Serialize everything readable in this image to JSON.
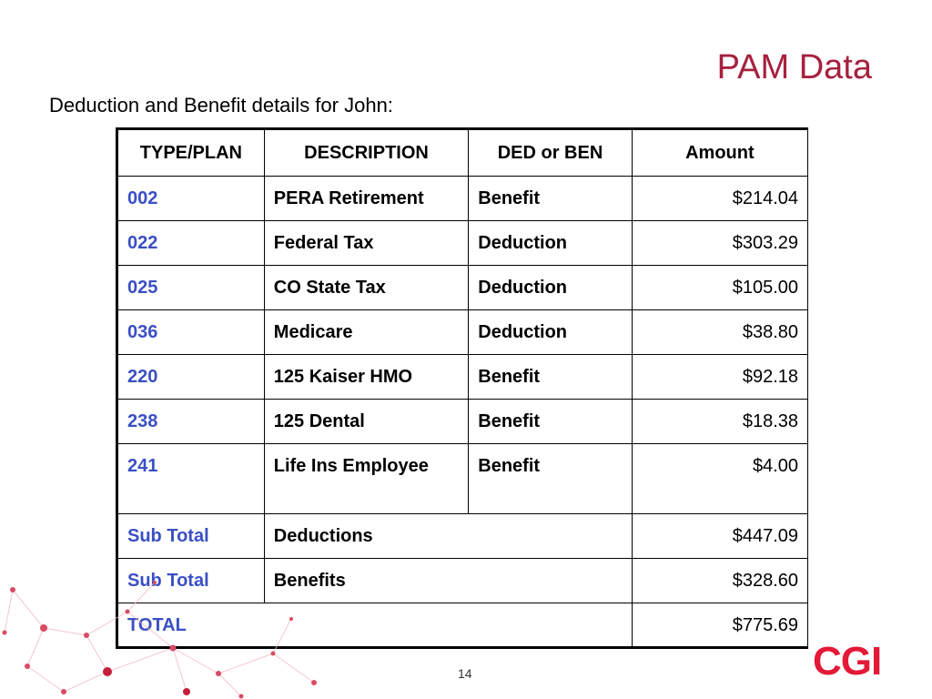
{
  "title": "PAM Data",
  "subtitle": "Deduction and Benefit details for John:",
  "table": {
    "headers": [
      "TYPE/PLAN",
      "DESCRIPTION",
      "DED or BEN",
      "Amount"
    ],
    "rows": [
      {
        "code": "002",
        "description": "PERA Retirement",
        "type": "Benefit",
        "amount": "$214.04"
      },
      {
        "code": "022",
        "description": "Federal Tax",
        "type": "Deduction",
        "amount": "$303.29"
      },
      {
        "code": "025",
        "description": "CO State Tax",
        "type": "Deduction",
        "amount": "$105.00"
      },
      {
        "code": "036",
        "description": "Medicare",
        "type": "Deduction",
        "amount": "$38.80"
      },
      {
        "code": "220",
        "description": "125 Kaiser HMO",
        "type": "Benefit",
        "amount": "$92.18"
      },
      {
        "code": "238",
        "description": "125 Dental",
        "type": "Benefit",
        "amount": "$18.38"
      },
      {
        "code": "241",
        "description": "Life Ins Employee",
        "type": "Benefit",
        "amount": "$4.00"
      }
    ],
    "subtotals": [
      {
        "label": "Sub Total",
        "description": "Deductions",
        "amount": "$447.09"
      },
      {
        "label": "Sub Total",
        "description": "Benefits",
        "amount": "$328.60"
      }
    ],
    "total": {
      "label": "TOTAL",
      "amount": "$775.69"
    }
  },
  "page_number": "14",
  "logo_text": "CGI",
  "colors": {
    "title": "#a6213e",
    "code": "#3a4fc4",
    "logo": "#e31937"
  }
}
